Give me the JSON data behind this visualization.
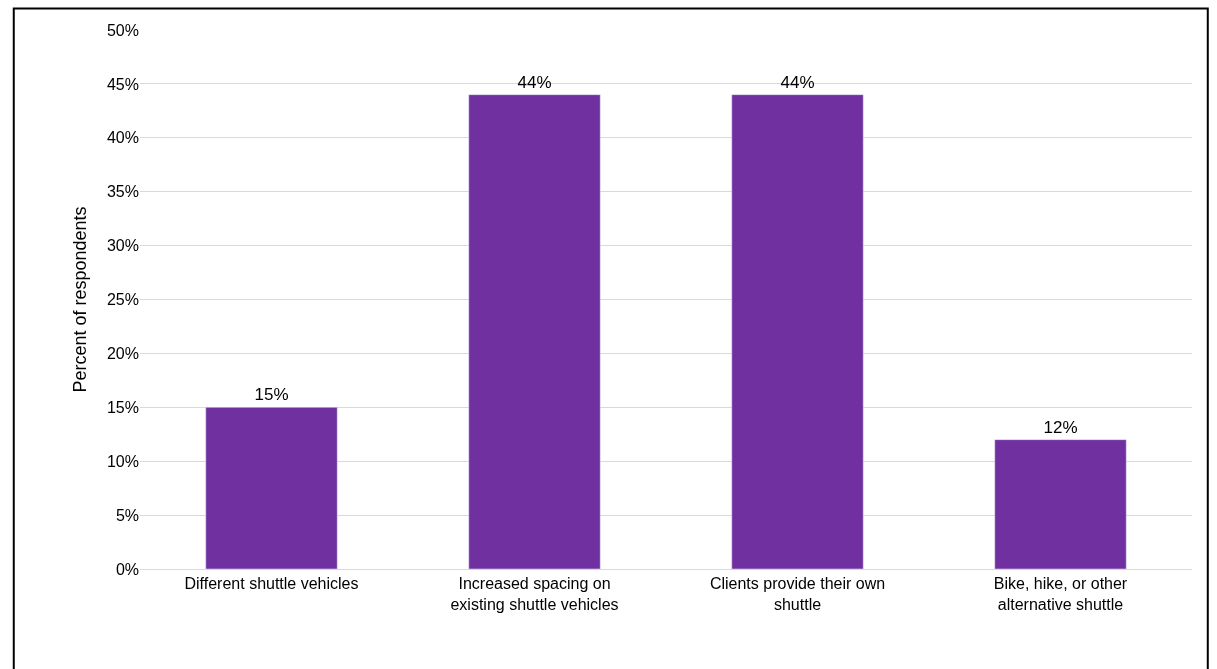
{
  "chart_data": {
    "type": "bar",
    "ylabel": "Percent of respondents",
    "categories": [
      "Different shuttle vehicles",
      "Increased spacing on existing shuttle vehicles",
      "Clients provide their own shuttle",
      "Bike, hike, or other alternative shuttle"
    ],
    "values": [
      15,
      44,
      44,
      12
    ],
    "value_labels": [
      "15%",
      "44%",
      "44%",
      "12%"
    ],
    "color": "#7030a0",
    "ylim": [
      0,
      50
    ],
    "yticks": [
      {
        "value": 0,
        "label": "0%"
      },
      {
        "value": 5,
        "label": "5%"
      },
      {
        "value": 10,
        "label": "10%"
      },
      {
        "value": 15,
        "label": "15%"
      },
      {
        "value": 20,
        "label": "20%"
      },
      {
        "value": 25,
        "label": "25%"
      },
      {
        "value": 30,
        "label": "30%"
      },
      {
        "value": 35,
        "label": "35%"
      },
      {
        "value": 40,
        "label": "40%"
      },
      {
        "value": 45,
        "label": "45%"
      },
      {
        "value": 50,
        "label": "50%"
      }
    ],
    "grid": "y",
    "legend": false
  }
}
